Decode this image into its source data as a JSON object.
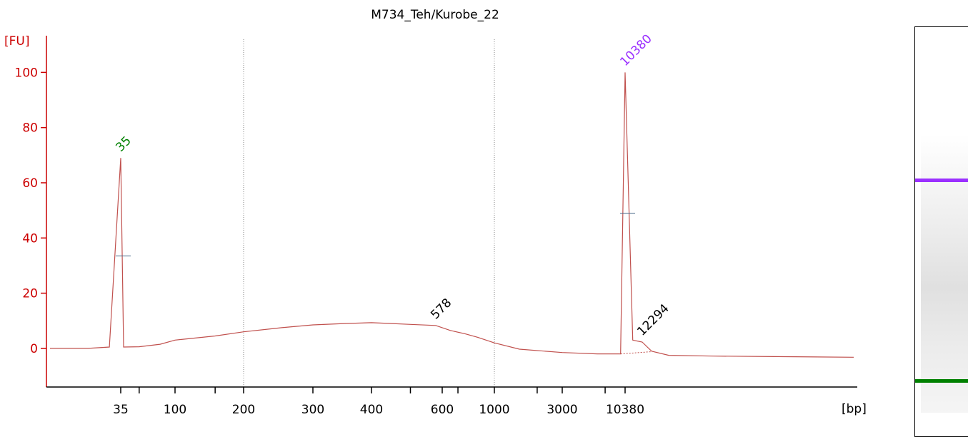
{
  "chart_data": {
    "type": "line",
    "title": "M734_Teh/Kurobe_22",
    "xlabel": "[bp]",
    "ylabel": "[FU]",
    "xscale": "ladder (non-linear, electropherogram)",
    "ylim": [
      -14,
      112
    ],
    "yticks": [
      0,
      20,
      40,
      60,
      80,
      100
    ],
    "xtick_labels": [
      "35",
      "100",
      "200",
      "300",
      "400",
      "600",
      "1000",
      "3000",
      "10380"
    ],
    "grid": "dotted vertical lines at 200 and 1000",
    "series": [
      {
        "color": "#c0504d",
        "points": [
          [
            "20",
            0
          ],
          [
            "27",
            0
          ],
          [
            "32",
            0.5
          ],
          [
            "35",
            69
          ],
          [
            "37",
            0.5
          ],
          [
            "50",
            0.6
          ],
          [
            "75",
            1.5
          ],
          [
            "100",
            3
          ],
          [
            "150",
            4.5
          ],
          [
            "200",
            6
          ],
          [
            "250",
            7.5
          ],
          [
            "300",
            8.5
          ],
          [
            "350",
            9
          ],
          [
            "400",
            9.3
          ],
          [
            "450",
            9
          ],
          [
            "500",
            8.7
          ],
          [
            "578",
            8.3
          ],
          [
            "650",
            6.5
          ],
          [
            "750",
            5.3
          ],
          [
            "850",
            4
          ],
          [
            "1000",
            2
          ],
          [
            "1500",
            -0.3
          ],
          [
            "3000",
            -1.5
          ],
          [
            "6000",
            -2
          ],
          [
            "9500",
            -2
          ],
          [
            "10380",
            100
          ],
          [
            "11200",
            3
          ],
          [
            "12294",
            2.3
          ],
          [
            "13500",
            -1
          ],
          [
            "16000",
            -2.5
          ],
          [
            "25000",
            -2.8
          ],
          [
            "50000",
            -3
          ],
          [
            "100000",
            -3.2
          ]
        ]
      }
    ],
    "peaks": [
      {
        "label": "35",
        "y": 69,
        "color": "#008000"
      },
      {
        "label": "10380",
        "y": 100,
        "color": "#9b30ff"
      },
      {
        "label": "578",
        "y": 8.3,
        "color": "#000000"
      },
      {
        "label": "12294",
        "y": 2.3,
        "color": "#000000"
      }
    ],
    "gel": {
      "bands": [
        {
          "label": "10380",
          "color": "#9b30ff"
        },
        {
          "label": "35",
          "color": "#008000"
        }
      ]
    }
  }
}
